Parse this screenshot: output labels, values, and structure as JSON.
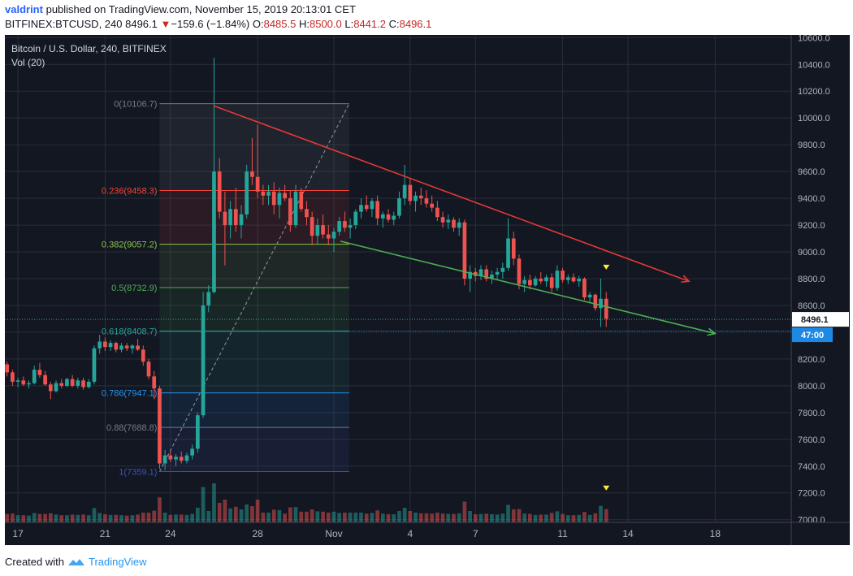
{
  "header": {
    "author": "valdrint",
    "published_text": "published on TradingView.com, November 15, 2019 20:13:01 CET",
    "symbol": "BITFINEX:BTCUSD, 240",
    "last": "8496.1",
    "change_arrow": "▼",
    "change": "−159.6 (−1.84%)",
    "o_label": "O:",
    "o_value": "8485.5",
    "h_label": "H:",
    "h_value": "8500.0",
    "l_label": "L:",
    "l_value": "8441.2",
    "c_label": "C:",
    "c_value": "8496.1"
  },
  "legend": {
    "title": "Bitcoin / U.S. Dollar, 240, BITFINEX",
    "volume": "Vol (20)"
  },
  "footer": {
    "created_with": "Created with",
    "brand": "TradingView"
  },
  "colors": {
    "background": "#131722",
    "grid": "#2a2e39",
    "up": "#26a69a",
    "down": "#ef5350",
    "axis_text": "#b2b5be",
    "red_trend": "#e53935",
    "green_trend": "#4caf50",
    "price_tag": "#1e88e5",
    "marker": "#ffeb3b"
  },
  "chart_data": {
    "type": "candlestick",
    "y_ticks": [
      "10600.0",
      "10400.0",
      "10200.0",
      "10000.0",
      "9800.0",
      "9600.0",
      "9400.0",
      "9200.0",
      "9000.0",
      "8800.0",
      "8600.0",
      "8400.0",
      "8200.0",
      "8000.0",
      "7800.0",
      "7600.0",
      "7400.0",
      "7200.0",
      "7000.0"
    ],
    "y_range": [
      6980,
      10620
    ],
    "x_range": [
      16.4,
      19.2
    ],
    "x_ticks": [
      {
        "x": 17,
        "label": "17"
      },
      {
        "x": 21,
        "label": "21"
      },
      {
        "x": 24,
        "label": "24"
      },
      {
        "x": 28,
        "label": "28"
      },
      {
        "x": 31.5,
        "label": "Nov"
      },
      {
        "x": 35,
        "label": "4"
      },
      {
        "x": 38,
        "label": "7"
      },
      {
        "x": 42,
        "label": "11"
      },
      {
        "x": 45,
        "label": "14"
      },
      {
        "x": 49,
        "label": "18"
      }
    ],
    "last_price_label": "8496.1",
    "countdown_label": "47:00",
    "last_price": 8496.1,
    "fibonacci": {
      "x_start": 23.5,
      "x_end": 32.2,
      "levels": [
        {
          "label": "0(10106.7)",
          "value": 10106.7,
          "color": "#787b86"
        },
        {
          "label": "0.236(9458.3)",
          "value": 9458.3,
          "color": "#f44336"
        },
        {
          "label": "0.382(9057.2)",
          "value": 9057.2,
          "color": "#8bc34a"
        },
        {
          "label": "0.5(8732.9)",
          "value": 8732.9,
          "color": "#4caf50"
        },
        {
          "label": "0.618(8408.7)",
          "value": 8408.7,
          "color": "#26a69a"
        },
        {
          "label": "0.786(7947.1)",
          "value": 7947.1,
          "color": "#2196f3"
        },
        {
          "label": "0.88(7688.8)",
          "value": 7688.8,
          "color": "#787b86"
        },
        {
          "label": "1(7359.1)",
          "value": 7359.1,
          "color": "#3f51b5"
        }
      ]
    },
    "trendlines": [
      {
        "name": "red",
        "x1": 26,
        "y1": 10090,
        "x2": 47.8,
        "y2": 8780,
        "color": "#e53935"
      },
      {
        "name": "green",
        "x1": 31.8,
        "y1": 9080,
        "x2": 49,
        "y2": 8390,
        "color": "#4caf50"
      }
    ],
    "candles": [
      [
        16.5,
        8160,
        8180,
        8070,
        8100
      ],
      [
        16.75,
        8100,
        8120,
        8000,
        8030
      ],
      [
        17,
        8030,
        8060,
        7990,
        8040
      ],
      [
        17.25,
        8040,
        8070,
        8000,
        8010
      ],
      [
        17.5,
        8010,
        8040,
        7980,
        8020
      ],
      [
        17.75,
        8020,
        8150,
        8010,
        8120
      ],
      [
        18,
        8120,
        8170,
        8060,
        8080
      ],
      [
        18.25,
        8080,
        8110,
        8000,
        8010
      ],
      [
        18.5,
        8010,
        8030,
        7900,
        7960
      ],
      [
        18.75,
        7960,
        8040,
        7950,
        8020
      ],
      [
        19,
        8020,
        8050,
        7980,
        8000
      ],
      [
        19.25,
        8000,
        8060,
        7990,
        8050
      ],
      [
        19.5,
        8050,
        8080,
        7990,
        8000
      ],
      [
        19.75,
        8000,
        8060,
        7980,
        8040
      ],
      [
        20,
        8040,
        8060,
        7970,
        7990
      ],
      [
        20.25,
        7990,
        8050,
        7980,
        8030
      ],
      [
        20.5,
        8030,
        8300,
        8010,
        8280
      ],
      [
        20.75,
        8280,
        8380,
        8240,
        8330
      ],
      [
        21,
        8330,
        8360,
        8260,
        8290
      ],
      [
        21.25,
        8290,
        8340,
        8260,
        8320
      ],
      [
        21.5,
        8320,
        8330,
        8250,
        8270
      ],
      [
        21.75,
        8270,
        8320,
        8250,
        8300
      ],
      [
        22,
        8300,
        8320,
        8260,
        8280
      ],
      [
        22.25,
        8280,
        8310,
        8240,
        8300
      ],
      [
        22.5,
        8300,
        8350,
        8260,
        8270
      ],
      [
        22.75,
        8270,
        8300,
        8150,
        8180
      ],
      [
        23,
        8180,
        8200,
        8050,
        8070
      ],
      [
        23.25,
        8070,
        8110,
        7900,
        7980
      ],
      [
        23.5,
        7980,
        8000,
        7380,
        7420
      ],
      [
        23.75,
        7420,
        7520,
        7370,
        7480
      ],
      [
        24,
        7480,
        7510,
        7430,
        7450
      ],
      [
        24.25,
        7450,
        7490,
        7400,
        7470
      ],
      [
        24.5,
        7470,
        7510,
        7420,
        7440
      ],
      [
        24.75,
        7440,
        7500,
        7420,
        7480
      ],
      [
        25,
        7480,
        7560,
        7450,
        7530
      ],
      [
        25.25,
        7530,
        7800,
        7500,
        7780
      ],
      [
        25.5,
        7780,
        8700,
        7760,
        8600
      ],
      [
        25.75,
        8600,
        8750,
        8550,
        8700
      ],
      [
        26,
        8700,
        10450,
        8690,
        9600
      ],
      [
        26.25,
        9600,
        9700,
        9250,
        9300
      ],
      [
        26.5,
        9300,
        9450,
        8900,
        9200
      ],
      [
        26.75,
        9200,
        9380,
        9100,
        9320
      ],
      [
        27,
        9320,
        9480,
        9150,
        9200
      ],
      [
        27.25,
        9200,
        9350,
        9100,
        9280
      ],
      [
        27.5,
        9280,
        9650,
        9250,
        9600
      ],
      [
        27.75,
        9600,
        9850,
        9500,
        9560
      ],
      [
        28,
        9560,
        9950,
        9400,
        9450
      ],
      [
        28.25,
        9450,
        9500,
        9350,
        9420
      ],
      [
        28.5,
        9420,
        9500,
        9350,
        9450
      ],
      [
        28.75,
        9450,
        9520,
        9280,
        9350
      ],
      [
        29,
        9350,
        9480,
        9250,
        9440
      ],
      [
        29.25,
        9440,
        9500,
        9380,
        9400
      ],
      [
        29.5,
        9400,
        9460,
        9150,
        9200
      ],
      [
        29.75,
        9200,
        9500,
        9180,
        9450
      ],
      [
        30,
        9450,
        9480,
        9300,
        9320
      ],
      [
        30.25,
        9320,
        9380,
        9200,
        9260
      ],
      [
        30.5,
        9260,
        9300,
        9050,
        9120
      ],
      [
        30.75,
        9120,
        9250,
        9060,
        9200
      ],
      [
        31,
        9200,
        9280,
        9100,
        9130
      ],
      [
        31.25,
        9130,
        9200,
        9050,
        9100
      ],
      [
        31.5,
        9100,
        9180,
        9000,
        9150
      ],
      [
        31.75,
        9150,
        9260,
        9120,
        9230
      ],
      [
        32,
        9230,
        9300,
        9150,
        9180
      ],
      [
        32.25,
        9180,
        9250,
        9100,
        9200
      ],
      [
        32.5,
        9200,
        9320,
        9170,
        9300
      ],
      [
        32.75,
        9300,
        9400,
        9250,
        9350
      ],
      [
        33,
        9350,
        9420,
        9300,
        9320
      ],
      [
        33.25,
        9320,
        9400,
        9260,
        9380
      ],
      [
        33.5,
        9380,
        9420,
        9200,
        9250
      ],
      [
        33.75,
        9250,
        9300,
        9180,
        9280
      ],
      [
        34,
        9280,
        9320,
        9220,
        9240
      ],
      [
        34.25,
        9240,
        9300,
        9200,
        9270
      ],
      [
        34.5,
        9270,
        9450,
        9250,
        9400
      ],
      [
        34.75,
        9400,
        9650,
        9350,
        9500
      ],
      [
        35,
        9500,
        9550,
        9350,
        9380
      ],
      [
        35.25,
        9380,
        9450,
        9300,
        9420
      ],
      [
        35.5,
        9420,
        9480,
        9350,
        9400
      ],
      [
        35.75,
        9400,
        9460,
        9330,
        9360
      ],
      [
        36,
        9360,
        9420,
        9300,
        9330
      ],
      [
        36.25,
        9330,
        9380,
        9230,
        9260
      ],
      [
        36.5,
        9260,
        9300,
        9180,
        9220
      ],
      [
        36.75,
        9220,
        9280,
        9170,
        9240
      ],
      [
        37,
        9240,
        9260,
        9150,
        9180
      ],
      [
        37.25,
        9180,
        9250,
        9120,
        9220
      ],
      [
        37.5,
        9220,
        9240,
        8750,
        8800
      ],
      [
        37.75,
        8800,
        8900,
        8700,
        8850
      ],
      [
        38,
        8850,
        8880,
        8780,
        8820
      ],
      [
        38.25,
        8820,
        8900,
        8790,
        8870
      ],
      [
        38.5,
        8870,
        8900,
        8780,
        8800
      ],
      [
        38.75,
        8800,
        8860,
        8760,
        8830
      ],
      [
        39,
        8830,
        8880,
        8790,
        8850
      ],
      [
        39.25,
        8850,
        8920,
        8800,
        8880
      ],
      [
        39.5,
        8880,
        9250,
        8860,
        9100
      ],
      [
        39.75,
        9100,
        9150,
        8900,
        8950
      ],
      [
        40,
        8950,
        8980,
        8720,
        8760
      ],
      [
        40.25,
        8760,
        8820,
        8700,
        8790
      ],
      [
        40.5,
        8790,
        8830,
        8720,
        8750
      ],
      [
        40.75,
        8750,
        8820,
        8740,
        8800
      ],
      [
        41,
        8800,
        8850,
        8760,
        8780
      ],
      [
        41.25,
        8780,
        8830,
        8740,
        8810
      ],
      [
        41.5,
        8810,
        8840,
        8700,
        8730
      ],
      [
        41.75,
        8730,
        8900,
        8710,
        8860
      ],
      [
        42,
        8860,
        8880,
        8770,
        8790
      ],
      [
        42.25,
        8790,
        8830,
        8760,
        8810
      ],
      [
        42.5,
        8810,
        8840,
        8770,
        8780
      ],
      [
        42.75,
        8780,
        8820,
        8740,
        8800
      ],
      [
        43,
        8800,
        8810,
        8640,
        8660
      ],
      [
        43.25,
        8660,
        8700,
        8620,
        8680
      ],
      [
        43.5,
        8680,
        8690,
        8560,
        8580
      ],
      [
        43.75,
        8580,
        8800,
        8440,
        8650
      ],
      [
        44,
        8650,
        8700,
        8440,
        8500
      ]
    ],
    "volume_max": 260
  }
}
